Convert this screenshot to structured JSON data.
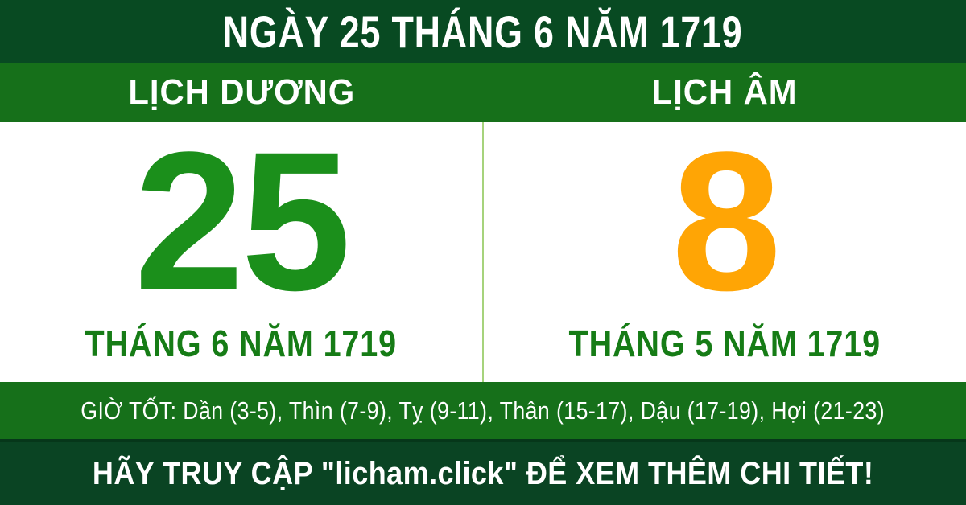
{
  "header": {
    "title": "NGÀY 25 THÁNG 6 NĂM 1719"
  },
  "columns": {
    "solar": {
      "label": "LỊCH DƯƠNG",
      "day": "25",
      "subtitle": "THÁNG 6 NĂM 1719"
    },
    "lunar": {
      "label": "LỊCH ÂM",
      "day": "8",
      "subtitle": "THÁNG 5 NĂM 1719"
    }
  },
  "good_hours": {
    "text": "GIỜ TỐT: Dần (3-5), Thìn (7-9), Tỵ (9-11), Thân (15-17), Dậu (17-19), Hợi (21-23)"
  },
  "footer": {
    "text": "HÃY TRUY CẬP \"licham.click\" ĐỂ XEM THÊM CHI TIẾT!"
  },
  "colors": {
    "dark_green": "#084a22",
    "bright_green": "#16701a",
    "solar_number_green": "#1b8f1b",
    "lunar_number_orange": "#ffa505",
    "subtitle_green": "#167c16",
    "divider_light_green": "#a6d37c",
    "text_white": "#ffffff"
  }
}
